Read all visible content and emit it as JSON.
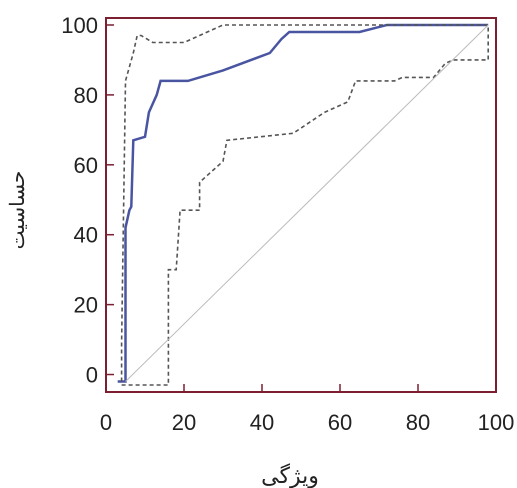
{
  "chart_data": {
    "type": "line",
    "xlabel": "ویژگی",
    "ylabel": "حساسیت",
    "xlim": [
      0,
      100
    ],
    "ylim": [
      -5,
      102
    ],
    "x_ticks": [
      0,
      20,
      40,
      60,
      80,
      100
    ],
    "y_ticks": [
      0,
      20,
      40,
      60,
      80,
      100
    ],
    "x_tick_labels": [
      "0",
      "20",
      "40",
      "60",
      "80",
      "100"
    ],
    "y_tick_labels": [
      "0",
      "20",
      "40",
      "60",
      "80",
      "100"
    ],
    "grid": false,
    "series": [
      {
        "style": "solid",
        "color": "#4a55a2",
        "points": [
          [
            3,
            -2
          ],
          [
            5,
            -2
          ],
          [
            5,
            42
          ],
          [
            6,
            47
          ],
          [
            6.5,
            48
          ],
          [
            7,
            67
          ],
          [
            10,
            68
          ],
          [
            11,
            75
          ],
          [
            13,
            80
          ],
          [
            14,
            84
          ],
          [
            21,
            84
          ],
          [
            30,
            87
          ],
          [
            42,
            92
          ],
          [
            45,
            96
          ],
          [
            47,
            98
          ],
          [
            65,
            98
          ],
          [
            72,
            100
          ],
          [
            98,
            100
          ]
        ]
      },
      {
        "style": "dashed",
        "color": "#555555",
        "points": [
          [
            4,
            -2
          ],
          [
            4,
            9
          ],
          [
            5,
            84
          ],
          [
            6,
            88
          ],
          [
            7,
            92
          ],
          [
            8,
            97
          ],
          [
            9,
            97
          ],
          [
            12,
            95
          ],
          [
            20,
            95
          ],
          [
            30,
            100
          ],
          [
            98,
            100
          ]
        ]
      },
      {
        "style": "dashed",
        "color": "#555555",
        "points": [
          [
            4,
            -3
          ],
          [
            16,
            -3
          ],
          [
            16,
            30
          ],
          [
            18,
            30
          ],
          [
            19,
            47
          ],
          [
            24,
            47
          ],
          [
            24,
            55
          ],
          [
            27,
            58
          ],
          [
            30,
            61
          ],
          [
            31,
            67
          ],
          [
            48,
            69
          ],
          [
            56,
            75
          ],
          [
            62,
            78
          ],
          [
            64,
            84
          ],
          [
            74,
            84
          ],
          [
            76,
            85
          ],
          [
            84,
            85
          ],
          [
            87,
            89
          ],
          [
            89,
            90
          ],
          [
            98,
            90
          ],
          [
            98,
            100
          ]
        ]
      },
      {
        "style": "reference",
        "color": "#bbbbbb",
        "points": [
          [
            5,
            -2
          ],
          [
            98,
            100
          ]
        ]
      }
    ]
  }
}
